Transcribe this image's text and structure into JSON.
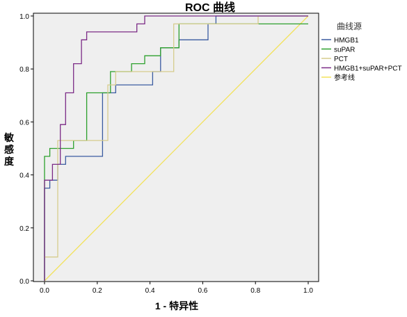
{
  "chart_data": {
    "type": "line",
    "title": "ROC 曲线",
    "xlabel": "1 - 特异性",
    "ylabel": "敏感度",
    "xlim": [
      0,
      1
    ],
    "ylim": [
      0,
      1
    ],
    "xticks": [
      "0.0",
      "0.2",
      "0.4",
      "0.6",
      "0.8",
      "1.0"
    ],
    "yticks": [
      "0.0",
      "0.2",
      "0.4",
      "0.6",
      "0.8",
      "1.0"
    ],
    "grid": false,
    "legend": {
      "title": "曲线源",
      "placement": "right"
    },
    "series": [
      {
        "name": "HMGB1",
        "color": "#3a5ba0",
        "x": [
          0,
          0,
          0.02,
          0.02,
          0.05,
          0.05,
          0.08,
          0.08,
          0.22,
          0.22,
          0.27,
          0.27,
          0.41,
          0.41,
          0.44,
          0.44,
          0.51,
          0.51,
          0.62,
          0.62,
          0.65,
          0.65,
          1.0
        ],
        "y": [
          0,
          0.35,
          0.35,
          0.38,
          0.38,
          0.44,
          0.44,
          0.47,
          0.47,
          0.71,
          0.71,
          0.74,
          0.74,
          0.79,
          0.79,
          0.88,
          0.88,
          0.91,
          0.91,
          0.97,
          0.97,
          1.0,
          1.0
        ]
      },
      {
        "name": "suPAR",
        "color": "#2ca02c",
        "x": [
          0,
          0,
          0.02,
          0.02,
          0.11,
          0.11,
          0.16,
          0.16,
          0.25,
          0.25,
          0.33,
          0.33,
          0.38,
          0.38,
          0.44,
          0.44,
          0.51,
          0.51,
          1.0
        ],
        "y": [
          0,
          0.47,
          0.47,
          0.5,
          0.5,
          0.53,
          0.53,
          0.71,
          0.71,
          0.79,
          0.79,
          0.82,
          0.82,
          0.85,
          0.85,
          0.88,
          0.88,
          0.97,
          0.97
        ]
      },
      {
        "name": "PCT",
        "color": "#d6cc8c",
        "x": [
          0,
          0.05,
          0.05,
          0.24,
          0.24,
          0.27,
          0.27,
          0.49,
          0.49,
          0.81,
          0.81,
          1.0
        ],
        "y": [
          0.09,
          0.09,
          0.53,
          0.53,
          0.74,
          0.74,
          0.79,
          0.79,
          0.97,
          0.97,
          1.0,
          1.0
        ]
      },
      {
        "name": "HMGB1+suPAR+PCT",
        "color": "#7b2a86",
        "x": [
          0,
          0,
          0.03,
          0.03,
          0.06,
          0.06,
          0.08,
          0.08,
          0.11,
          0.11,
          0.14,
          0.14,
          0.16,
          0.16,
          0.35,
          0.35,
          0.38,
          0.38,
          1.0
        ],
        "y": [
          0,
          0.38,
          0.38,
          0.44,
          0.44,
          0.59,
          0.59,
          0.71,
          0.71,
          0.82,
          0.82,
          0.91,
          0.91,
          0.94,
          0.94,
          0.97,
          0.97,
          1.0,
          1.0
        ]
      },
      {
        "name": "参考线",
        "color": "#f2e25a",
        "x": [
          0,
          1
        ],
        "y": [
          0,
          1
        ]
      }
    ]
  }
}
